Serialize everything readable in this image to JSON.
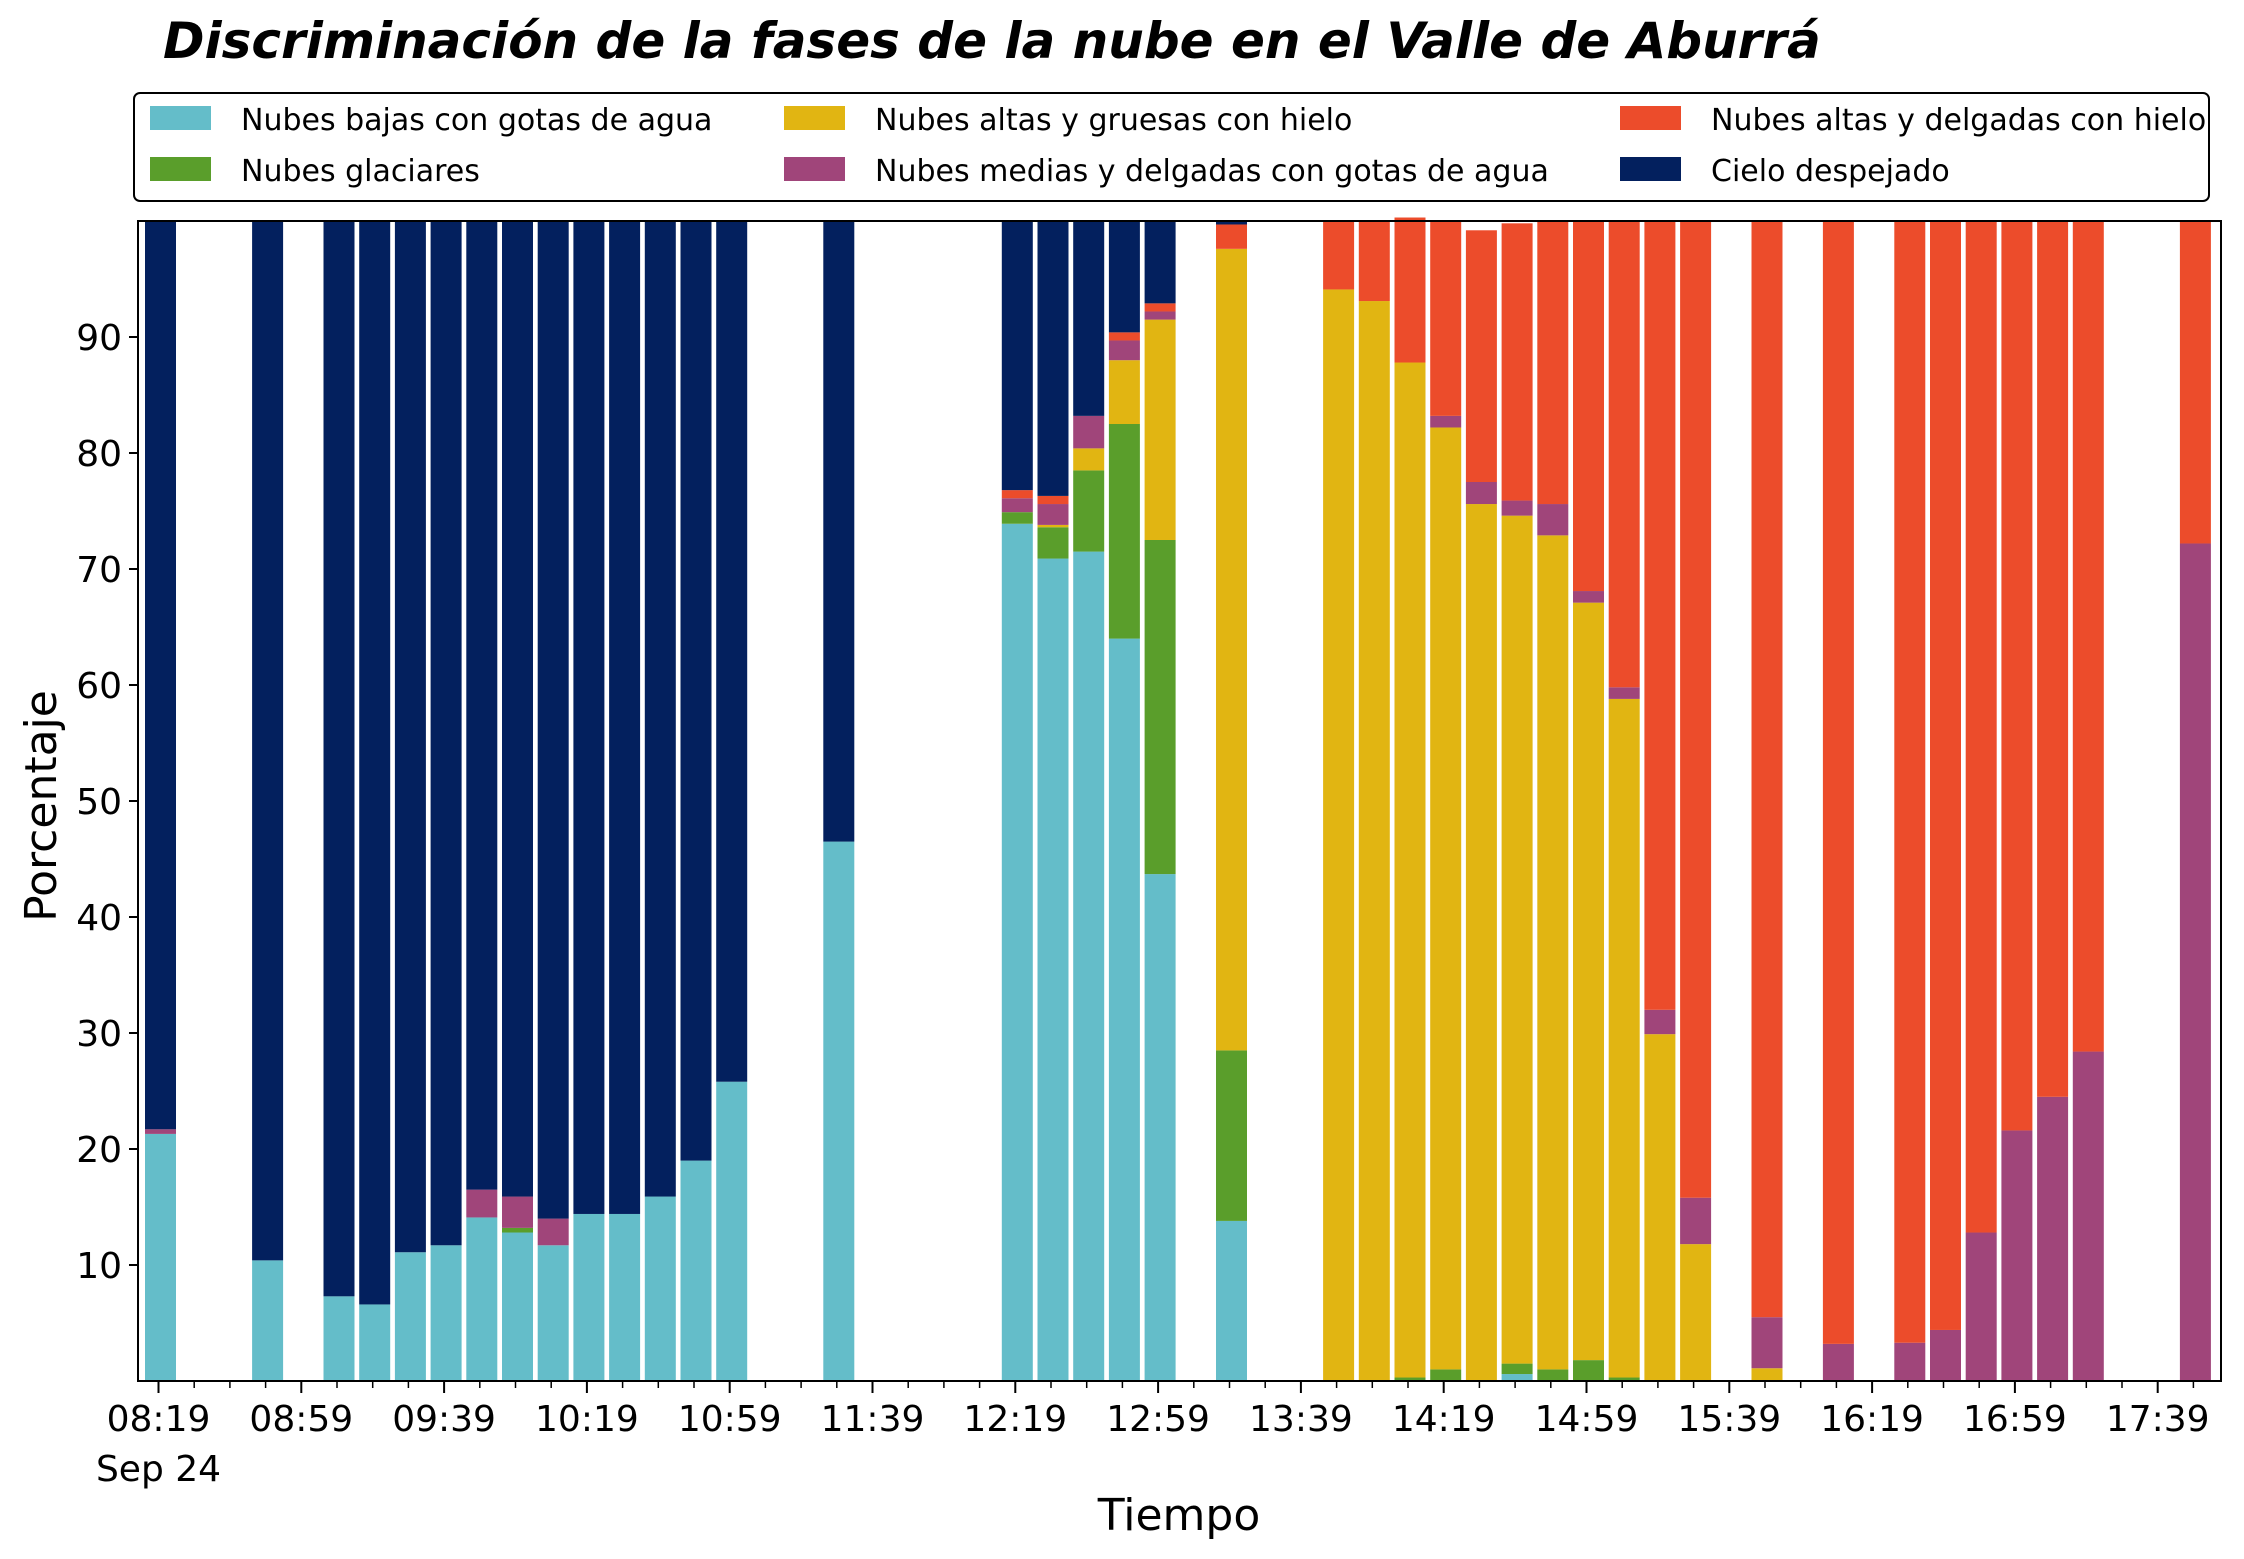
{
  "chart_data": {
    "type": "bar",
    "stacked": true,
    "title": "Discriminación de la fases de la nube en el Valle de Aburrá",
    "xlabel": "Tiempo",
    "ylabel": "Porcentaje",
    "ylim": [
      0,
      100
    ],
    "yticks": [
      10,
      20,
      30,
      40,
      50,
      60,
      70,
      80,
      90
    ],
    "xticks": [
      "08:19",
      "08:59",
      "09:39",
      "10:19",
      "10:59",
      "11:39",
      "12:19",
      "12:59",
      "13:39",
      "14:19",
      "14:59",
      "15:39",
      "16:19",
      "16:59",
      "17:39"
    ],
    "xtick_sublabel": "Sep 24",
    "grid": false,
    "legend_placement": "top",
    "categories": [
      "08:19",
      "08:29",
      "08:39",
      "08:49",
      "08:59",
      "09:09",
      "09:19",
      "09:29",
      "09:39",
      "09:49",
      "09:59",
      "10:09",
      "10:19",
      "10:29",
      "10:39",
      "10:49",
      "10:59",
      "11:09",
      "11:19",
      "11:29",
      "11:39",
      "11:49",
      "11:59",
      "12:09",
      "12:19",
      "12:29",
      "12:39",
      "12:49",
      "12:59",
      "13:09",
      "13:19",
      "13:29",
      "13:39",
      "13:49",
      "13:59",
      "14:09",
      "14:19",
      "14:29",
      "14:39",
      "14:49",
      "14:59",
      "15:09",
      "15:19",
      "15:29",
      "15:39",
      "15:49",
      "15:59",
      "16:09",
      "16:19",
      "16:29",
      "16:39",
      "16:49",
      "16:59",
      "17:09",
      "17:19",
      "17:29",
      "17:39",
      "17:49"
    ],
    "series": [
      {
        "name": "Nubes bajas con gotas de agua",
        "color": "#64bdc9",
        "values": [
          21.3,
          0,
          0,
          10.4,
          0,
          7.3,
          6.6,
          11.1,
          11.7,
          14.1,
          12.8,
          11.7,
          14.4,
          14.4,
          15.9,
          19,
          25.8,
          0,
          0,
          46.5,
          0,
          0,
          0,
          0,
          73.9,
          70.9,
          71.5,
          64,
          43.7,
          0,
          13.8,
          0,
          0,
          0,
          0,
          0,
          0,
          0,
          0.6,
          0,
          0,
          0,
          0,
          0,
          0,
          0,
          0,
          0,
          0,
          0,
          0,
          0,
          0,
          0,
          0,
          0,
          0,
          0
        ]
      },
      {
        "name": "Nubes glaciares",
        "color": "#5a9e2b",
        "values": [
          0,
          0,
          0,
          0,
          0,
          0,
          0,
          0,
          0,
          0,
          0.4,
          0,
          0,
          0,
          0,
          0,
          0,
          0,
          0,
          0,
          0,
          0,
          0,
          0,
          1,
          2.7,
          7,
          18.5,
          28.8,
          0,
          14.7,
          0,
          0,
          0,
          0,
          0.3,
          1,
          0,
          0.9,
          1,
          1.8,
          0.3,
          0,
          0,
          0,
          0,
          0,
          0,
          0,
          0,
          0,
          0,
          0,
          0,
          0,
          0,
          0,
          0
        ]
      },
      {
        "name": "Nubes altas y gruesas con hielo",
        "color": "#e1b512",
        "values": [
          0,
          0,
          0,
          0,
          0,
          0,
          0,
          0,
          0,
          0,
          0,
          0,
          0,
          0,
          0,
          0,
          0,
          0,
          0,
          0,
          0,
          0,
          0,
          0,
          0,
          0.2,
          1.9,
          5.5,
          19,
          0,
          69.1,
          0,
          0,
          94.1,
          93.1,
          87.5,
          81.2,
          75.6,
          73.1,
          71.9,
          65.3,
          58.5,
          29.9,
          11.8,
          0,
          1.1,
          0,
          0,
          0,
          0,
          0,
          0,
          0,
          0,
          0,
          0,
          0,
          0
        ]
      },
      {
        "name": "Nubes medias y delgadas con gotas de agua",
        "color": "#a0457a",
        "values": [
          0.4,
          0,
          0,
          0,
          0,
          0,
          0,
          0,
          0,
          2.4,
          2.7,
          2.3,
          0,
          0,
          0,
          0,
          0,
          0,
          0,
          0,
          0,
          0,
          0,
          0,
          1.2,
          1.8,
          2.8,
          1.7,
          0.7,
          0,
          0,
          0,
          0,
          0,
          0,
          0,
          1,
          1.9,
          1.3,
          2.7,
          1,
          1,
          2.1,
          4,
          0,
          4.4,
          0,
          3.2,
          0,
          3.3,
          4.4,
          12.8,
          21.6,
          24.5,
          28.4,
          0,
          0,
          72.2
        ]
      },
      {
        "name": "Nubes altas y delgadas con hielo",
        "color": "#ec4c2b",
        "values": [
          0,
          0,
          0,
          0,
          0,
          0,
          0,
          0,
          0,
          0,
          0,
          0,
          0,
          0,
          0,
          0,
          0,
          0,
          0,
          0,
          0,
          0,
          0,
          0,
          0.7,
          0.7,
          0,
          0.7,
          0.7,
          0,
          2.1,
          0,
          0,
          5.9,
          6.9,
          12.5,
          16.8,
          21.7,
          23.9,
          24.4,
          31.9,
          40.2,
          68,
          84.2,
          0,
          94.5,
          0,
          96.8,
          0,
          96.7,
          95.6,
          87.2,
          78.4,
          75.5,
          71.6,
          0,
          0,
          27.8
        ]
      },
      {
        "name": "Cielo despejado",
        "color": "#03205e",
        "values": [
          78.3,
          0,
          0,
          89.6,
          0,
          92.7,
          93.4,
          88.9,
          88.3,
          83.5,
          84.1,
          86,
          85.6,
          85.6,
          84.1,
          81,
          74.2,
          0,
          0,
          53.5,
          0,
          0,
          0,
          0,
          23.2,
          23.7,
          16.8,
          9.6,
          7.1,
          0,
          0.3,
          0,
          0,
          0,
          0,
          0,
          0,
          0,
          0,
          0,
          0,
          0,
          0,
          0,
          0,
          0,
          0,
          0,
          0,
          0,
          0,
          0,
          0,
          0,
          0,
          0,
          0,
          0
        ]
      }
    ]
  }
}
